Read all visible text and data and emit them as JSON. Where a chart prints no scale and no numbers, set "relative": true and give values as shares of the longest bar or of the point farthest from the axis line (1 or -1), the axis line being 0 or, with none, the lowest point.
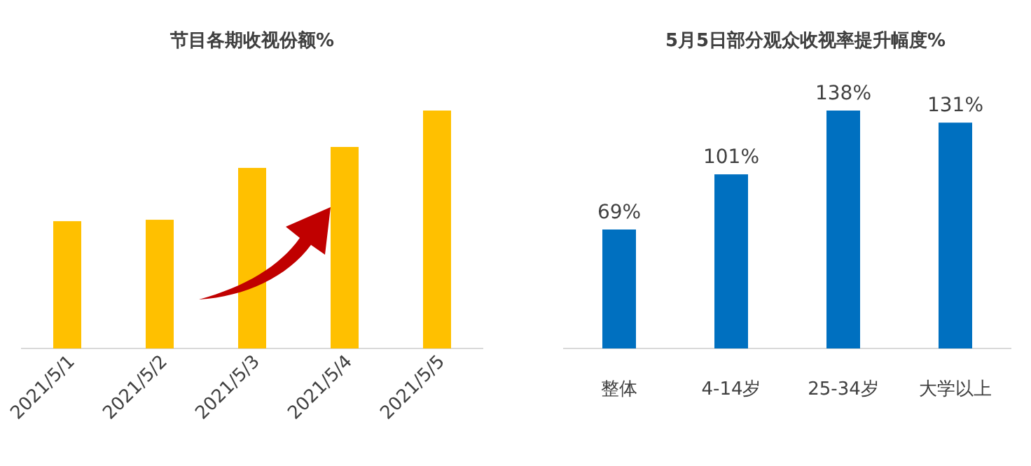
{
  "chart_data": [
    {
      "type": "bar",
      "title": "节目各期收视份额%",
      "categories": [
        "2021/5/1",
        "2021/5/2",
        "2021/5/3",
        "2021/5/4",
        "2021/5/5"
      ],
      "values": [
        0.535,
        0.541,
        0.759,
        0.847,
        1
      ],
      "relative": true,
      "color": "#ffc000"
    },
    {
      "type": "bar",
      "title": "5月5日部分观众收视率提升幅度%",
      "categories": [
        "整体",
        "4-14岁",
        "25-34岁",
        "大学以上"
      ],
      "values": [
        69,
        101,
        138,
        131
      ],
      "value_labels": [
        "69%",
        "101%",
        "138%",
        "131%"
      ],
      "color": "#0070c0"
    }
  ]
}
